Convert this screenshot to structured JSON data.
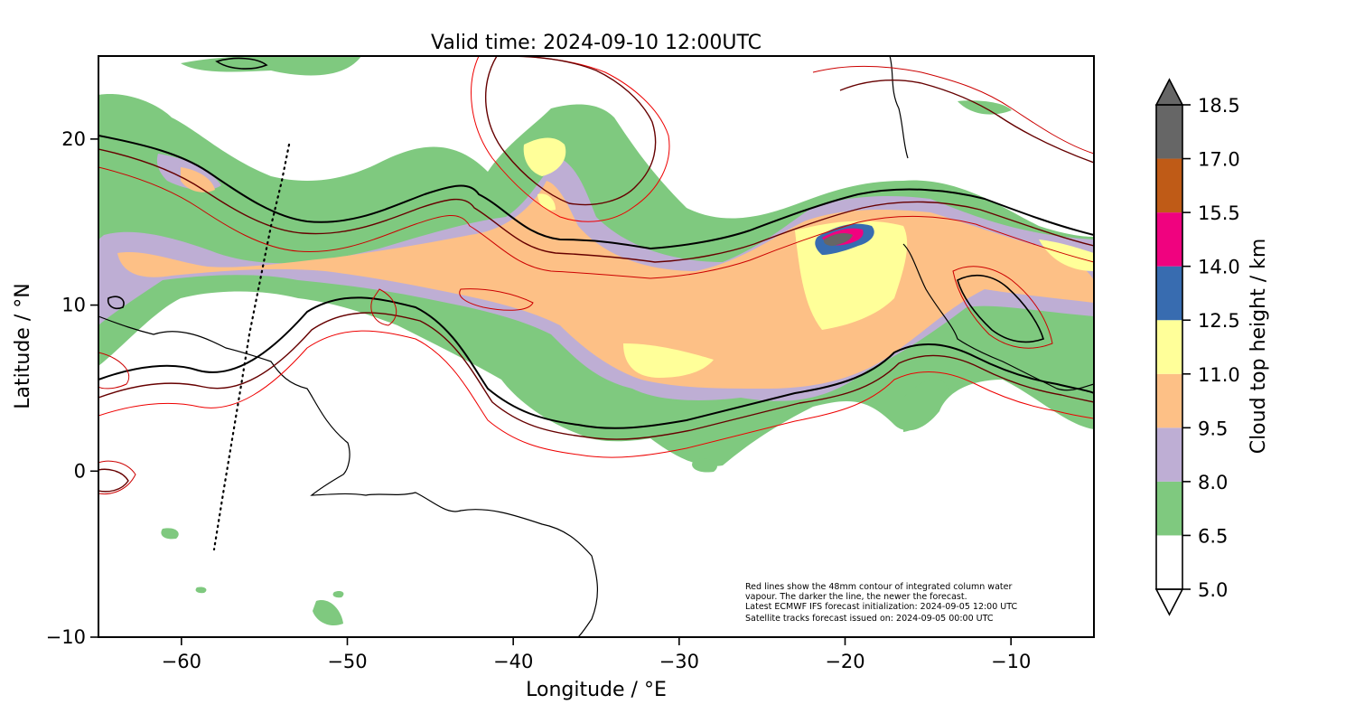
{
  "figure": {
    "title": "Valid time: 2024-09-10 12:00UTC",
    "xlabel": "Longitude / °E",
    "ylabel": "Latitude / °N",
    "colorbar_label": "Cloud top height / km",
    "note_lines": [
      "Red lines show the 48mm contour of integrated column water",
      "vapour. The darker the line, the newer the forecast.",
      "Latest ECMWF IFS forecast initialization: 2024-09-05 12:00 UTC",
      "Satellite tracks forecast issued on: 2024-09-05 00:00 UTC"
    ]
  },
  "map": {
    "xlim": [
      -65,
      -5
    ],
    "ylim": [
      -10,
      25
    ],
    "x_ticks": [
      -60,
      -50,
      -40,
      -30,
      -20,
      -10
    ],
    "x_tick_labels": [
      "−60",
      "−50",
      "−40",
      "−30",
      "−20",
      "−10"
    ],
    "y_ticks": [
      -10,
      0,
      10,
      20
    ],
    "y_tick_labels": [
      "−10",
      "0",
      "10",
      "20"
    ],
    "layers": [
      "cloud top height (filled)",
      "48mm IWV contours (red shades)",
      "coastlines",
      "satellite track (dotted)"
    ]
  },
  "colorbar": {
    "levels": [
      5.0,
      6.5,
      8.0,
      9.5,
      11.0,
      12.5,
      14.0,
      15.5,
      17.0,
      18.5
    ],
    "level_labels": [
      "5.0",
      "6.5",
      "8.0",
      "9.5",
      "11.0",
      "12.5",
      "14.0",
      "15.5",
      "17.0",
      "18.5"
    ],
    "colors": [
      "#ffffff",
      "#7fc97f",
      "#beaed4",
      "#fdc086",
      "#ffff99",
      "#386cb0",
      "#f0027f",
      "#bf5b17",
      "#666666"
    ],
    "extend": "both"
  },
  "chart_data": {
    "type": "heatmap",
    "title": "Valid time: 2024-09-10 12:00UTC",
    "xlabel": "Longitude / °E",
    "ylabel": "Latitude / °N",
    "xlim": [
      -65,
      -5
    ],
    "ylim": [
      -10,
      25
    ],
    "colorbar_label": "Cloud top height / km",
    "cloud_regions": [
      {
        "level_km": 6.5,
        "lon": [
          -65,
          -5
        ],
        "lat": [
          -8,
          24
        ],
        "description": "broad band of clouds"
      },
      {
        "level_km": 9.5,
        "lon": [
          -50,
          -5
        ],
        "lat": [
          6,
          15
        ]
      },
      {
        "level_km": 11.0,
        "lon": [
          -38,
          -18
        ],
        "lat": [
          6,
          18
        ]
      },
      {
        "level_km": 12.5,
        "lon": [
          -22,
          -19
        ],
        "lat": [
          13,
          15
        ]
      },
      {
        "level_km": 14.0,
        "lon": [
          -21,
          -19
        ],
        "lat": [
          13.5,
          15
        ]
      }
    ],
    "satellite_track": {
      "lon": [
        -54,
        -58
      ],
      "lat": [
        19,
        -5
      ]
    }
  }
}
